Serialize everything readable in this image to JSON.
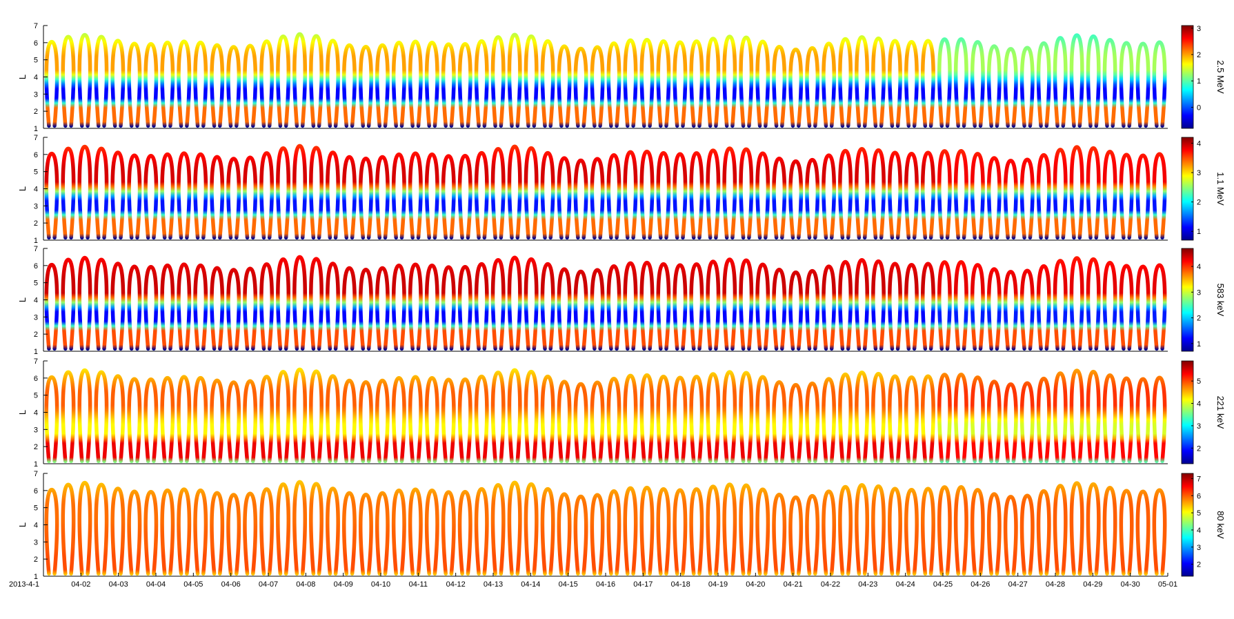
{
  "colors": {
    "colormap": [
      "#00008f",
      "#0000ff",
      "#0080ff",
      "#00ffff",
      "#80ff80",
      "#ffff00",
      "#ff8000",
      "#ff0000",
      "#800000"
    ],
    "axis": "#000000",
    "background": "#ffffff"
  },
  "chart_data": [
    {
      "type": "heatmap",
      "colorbar_label": "2.5 MeV",
      "ylabel": "L",
      "ylim": [
        1,
        7
      ],
      "yticks": [
        1,
        2,
        3,
        4,
        5,
        6,
        7
      ],
      "clim": [
        -0.8,
        3.1
      ],
      "colorbar_ticks": [
        "0",
        "1",
        "2",
        "3"
      ],
      "colorbar_tick_values": [
        0,
        1,
        2,
        3
      ],
      "profile_start": {
        "inner": 2.2,
        "slot": -0.3,
        "outer": 2.0,
        "high": 1.4
      },
      "profile_end": {
        "inner": 2.2,
        "slot": -0.3,
        "outer": 1.3,
        "high": 0.9
      }
    },
    {
      "type": "heatmap",
      "colorbar_label": "1.1 MeV",
      "ylabel": "L",
      "ylim": [
        1,
        7
      ],
      "yticks": [
        1,
        2,
        3,
        4,
        5,
        6,
        7
      ],
      "clim": [
        0.7,
        4.2
      ],
      "colorbar_ticks": [
        "1",
        "2",
        "3",
        "4"
      ],
      "colorbar_tick_values": [
        1,
        2,
        3,
        4
      ],
      "profile_start": {
        "inner": 3.4,
        "slot": 1.2,
        "outer": 3.9,
        "high": 3.6
      },
      "profile_end": {
        "inner": 3.4,
        "slot": 1.2,
        "outer": 3.8,
        "high": 3.6
      }
    },
    {
      "type": "heatmap",
      "colorbar_label": "583 keV",
      "ylabel": "L",
      "ylim": [
        1,
        7
      ],
      "yticks": [
        1,
        2,
        3,
        4,
        5,
        6,
        7
      ],
      "clim": [
        0.7,
        4.7
      ],
      "colorbar_ticks": [
        "1",
        "2",
        "3",
        "4"
      ],
      "colorbar_tick_values": [
        1,
        2,
        3,
        4
      ],
      "profile_start": {
        "inner": 3.9,
        "slot": 1.2,
        "outer": 4.4,
        "high": 4.2
      },
      "profile_end": {
        "inner": 3.9,
        "slot": 1.3,
        "outer": 4.3,
        "high": 4.1
      }
    },
    {
      "type": "heatmap",
      "colorbar_label": "221 keV",
      "ylabel": "L",
      "ylim": [
        1,
        7
      ],
      "yticks": [
        1,
        2,
        3,
        4,
        5,
        6,
        7
      ],
      "clim": [
        1.3,
        5.9
      ],
      "colorbar_ticks": [
        "2",
        "3",
        "4",
        "5"
      ],
      "colorbar_tick_values": [
        2,
        3,
        4,
        5
      ],
      "profile_start": {
        "inner": 5.4,
        "slot": 4.2,
        "outer": 4.9,
        "high": 4.3
      },
      "profile_end": {
        "inner": 5.3,
        "slot": 4.0,
        "outer": 5.1,
        "high": 4.6
      }
    },
    {
      "type": "heatmap",
      "colorbar_label": "80 keV",
      "ylabel": "L",
      "ylim": [
        1,
        7
      ],
      "yticks": [
        1,
        2,
        3,
        4,
        5,
        6,
        7
      ],
      "clim": [
        1.3,
        7.3
      ],
      "colorbar_ticks": [
        "2",
        "3",
        "4",
        "5",
        "6",
        "7"
      ],
      "colorbar_tick_values": [
        2,
        3,
        4,
        5,
        6,
        7
      ],
      "profile_start": {
        "inner": 6.1,
        "slot": 6.0,
        "outer": 5.9,
        "high": 5.4
      },
      "profile_end": {
        "inner": 6.1,
        "slot": 6.0,
        "outer": 6.0,
        "high": 5.5
      }
    }
  ],
  "x_axis": {
    "start": "2013-04-01",
    "end": "2013-05-01",
    "tick_labels": [
      "2013-4-1",
      "04-02",
      "04-03",
      "04-04",
      "04-05",
      "04-06",
      "04-07",
      "04-08",
      "04-09",
      "04-10",
      "04-11",
      "04-12",
      "04-13",
      "04-14",
      "04-15",
      "04-16",
      "04-17",
      "04-18",
      "04-19",
      "04-20",
      "04-21",
      "04-22",
      "04-23",
      "04-24",
      "04-25",
      "04-26",
      "04-27",
      "04-28",
      "04-29",
      "04-30",
      "05-01"
    ]
  }
}
